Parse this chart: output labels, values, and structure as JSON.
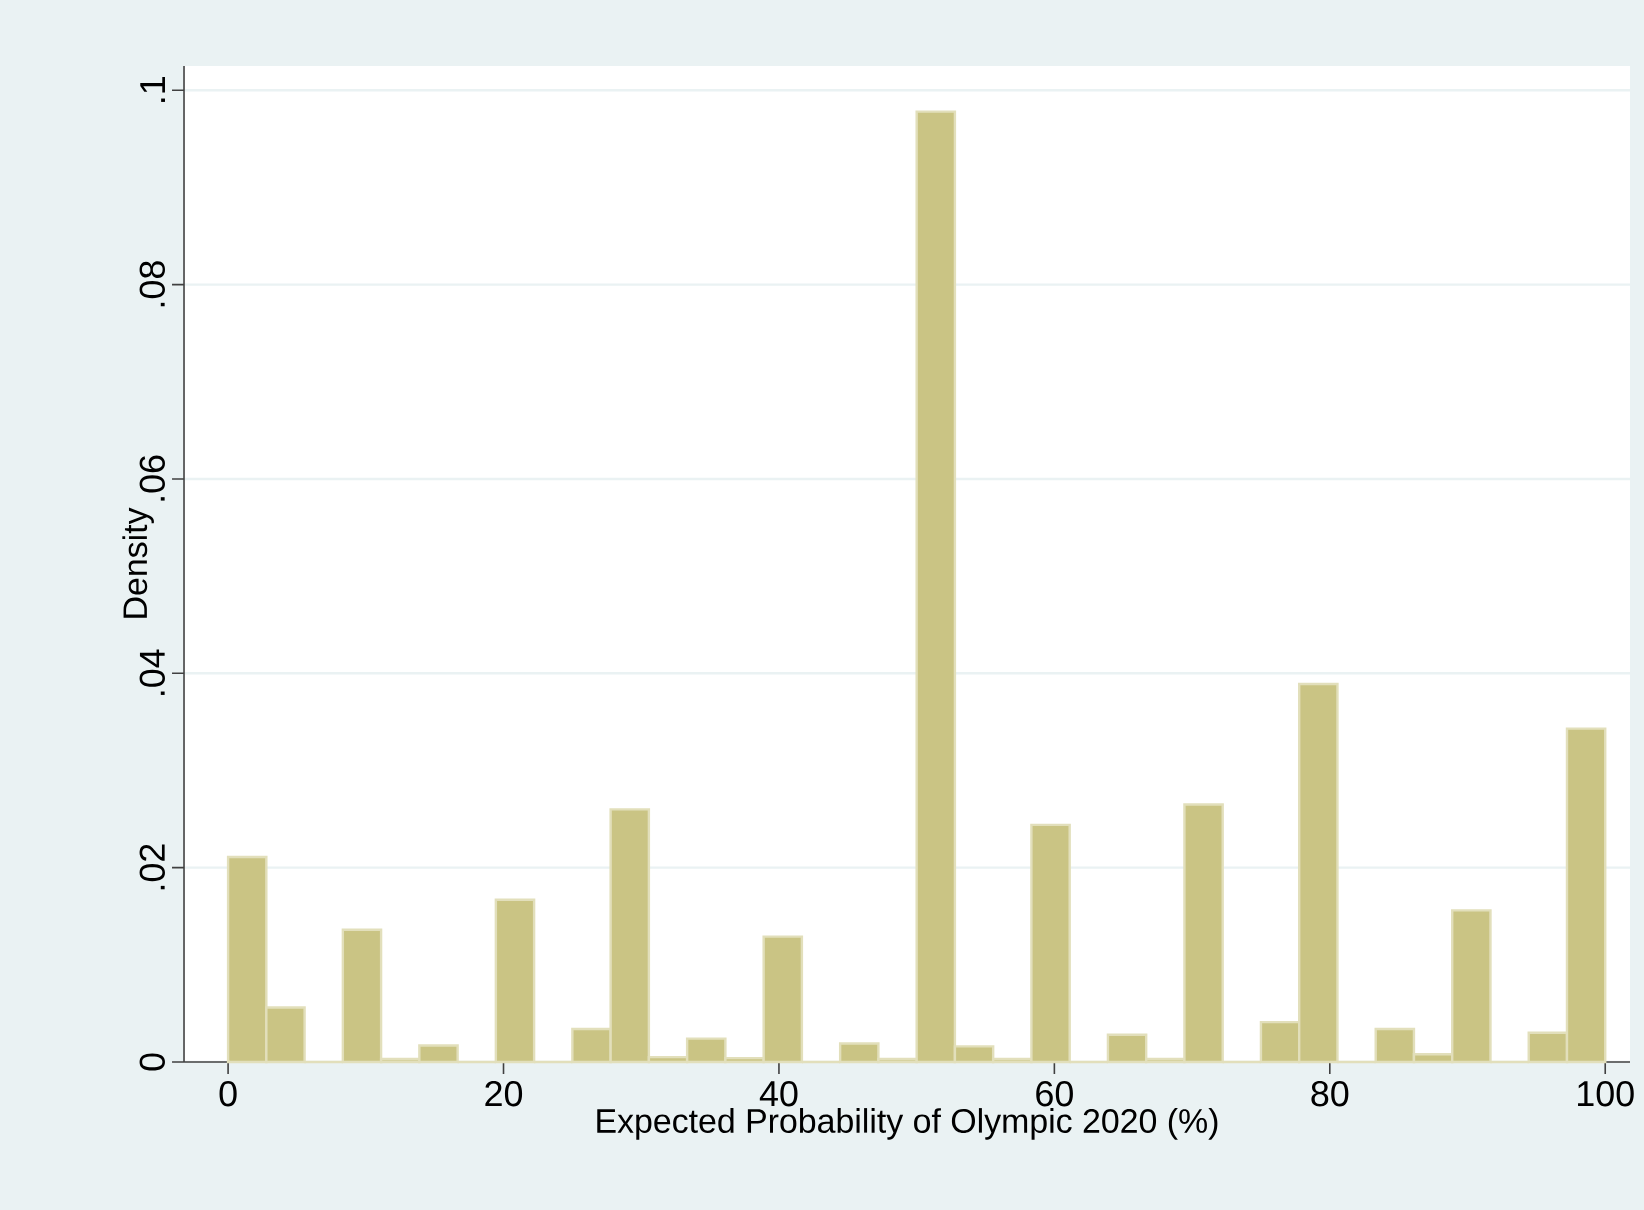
{
  "chart_data": {
    "type": "histogram",
    "xlabel": "Expected Probability of Olympic 2020 (%)",
    "ylabel": "Density",
    "bins": [
      0,
      2.778,
      5.556,
      8.333,
      11.111,
      13.889,
      16.667,
      19.444,
      22.222,
      25,
      27.778,
      30.556,
      33.333,
      36.111,
      38.889,
      41.667,
      44.444,
      47.222,
      50,
      52.778,
      55.556,
      58.333,
      61.111,
      63.889,
      66.667,
      69.444,
      72.222,
      75,
      77.778,
      80.556,
      83.333,
      86.111,
      88.889,
      91.667,
      94.444,
      97.222,
      100
    ],
    "values": [
      0.0211,
      0.0056,
      0,
      0.0136,
      0.0003,
      0.0017,
      0,
      0.0167,
      0,
      0.0034,
      0.026,
      0.0005,
      0.0024,
      0.0004,
      0.0129,
      0,
      0.0019,
      0.0003,
      0.0978,
      0.0016,
      0.0003,
      0.0244,
      0,
      0.0028,
      0.0003,
      0.0265,
      0,
      0.0041,
      0.0389,
      0,
      0.0034,
      0.0008,
      0.0156,
      0,
      0.003,
      0.0343
    ],
    "color": "#cac484",
    "xlim": [
      -3.2,
      101.8
    ],
    "ylim": [
      0,
      0.1025
    ],
    "xticks": [
      0,
      20,
      40,
      60,
      80,
      100
    ],
    "yticks": [
      0,
      {
        "value": 0.02,
        "label": ".02"
      },
      {
        "value": 0.04,
        "label": ".04"
      },
      {
        "value": 0.06,
        "label": ".06"
      },
      {
        "value": 0.08,
        "label": ".08"
      },
      {
        "value": 0.1,
        "label": ".1"
      }
    ],
    "grid": "y"
  }
}
